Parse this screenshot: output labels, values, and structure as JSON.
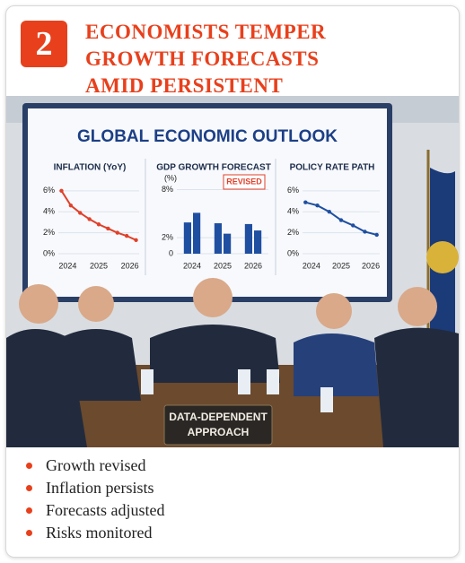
{
  "header": {
    "number": "2",
    "title": "ECONOMISTS TEMPER GROWTH FORECASTS AMID PERSISTENT INFLATION SIGNALS"
  },
  "screen": {
    "title": "GLOBAL ECONOMIC OUTLOOK",
    "panels": [
      {
        "type": "line",
        "title": "INFLATION (YoY)",
        "color": "#e0402a",
        "x": [
          2023.8,
          2024.1,
          2024.4,
          2024.7,
          2025.0,
          2025.3,
          2025.6,
          2025.9,
          2026.2
        ],
        "values": [
          6.0,
          4.6,
          3.9,
          3.3,
          2.8,
          2.4,
          2.0,
          1.7,
          1.3
        ],
        "xlim": [
          2023.7,
          2026.3
        ],
        "xticks": [
          2024,
          2025,
          2026
        ],
        "ylim": [
          0,
          6.5
        ],
        "yticks": [
          {
            "value": 0,
            "label": "0%"
          },
          {
            "value": 2,
            "label": "2%"
          },
          {
            "value": 4,
            "label": "4%"
          },
          {
            "value": 6,
            "label": "6%"
          }
        ]
      },
      {
        "type": "bar",
        "title": "GDP GROWTH FORECAST",
        "y_label": "(%)",
        "annotation": "REVISED",
        "color": "#1f4fa0",
        "categories": [
          "2024",
          "2025",
          "2026"
        ],
        "series": [
          {
            "values": [
              3.9,
              3.8,
              3.7
            ]
          },
          {
            "values": [
              5.1,
              2.5,
              2.9
            ]
          }
        ],
        "ylim": [
          0,
          8.5
        ],
        "yticks": [
          {
            "value": 0,
            "label": "0"
          },
          {
            "value": 2,
            "label": "2%"
          },
          {
            "value": 8,
            "label": "8%"
          }
        ]
      },
      {
        "type": "line",
        "title": "POLICY RATE PATH",
        "color": "#1f4fa0",
        "x": [
          2023.8,
          2024.2,
          2024.6,
          2025.0,
          2025.4,
          2025.8,
          2026.2
        ],
        "values": [
          4.9,
          4.6,
          4.0,
          3.2,
          2.7,
          2.1,
          1.8
        ],
        "xlim": [
          2023.7,
          2026.3
        ],
        "xticks": [
          2024,
          2025,
          2026
        ],
        "ylim": [
          0,
          6.5
        ],
        "yticks": [
          {
            "value": 0,
            "label": "0%"
          },
          {
            "value": 2,
            "label": "2%"
          },
          {
            "value": 4,
            "label": "4%"
          },
          {
            "value": 6,
            "label": "6%"
          }
        ]
      }
    ]
  },
  "placard": "DATA-DEPENDENT APPROACH",
  "bullets": [
    "Growth revised",
    "Inflation persists",
    "Forecasts adjusted",
    "Risks monitored"
  ]
}
